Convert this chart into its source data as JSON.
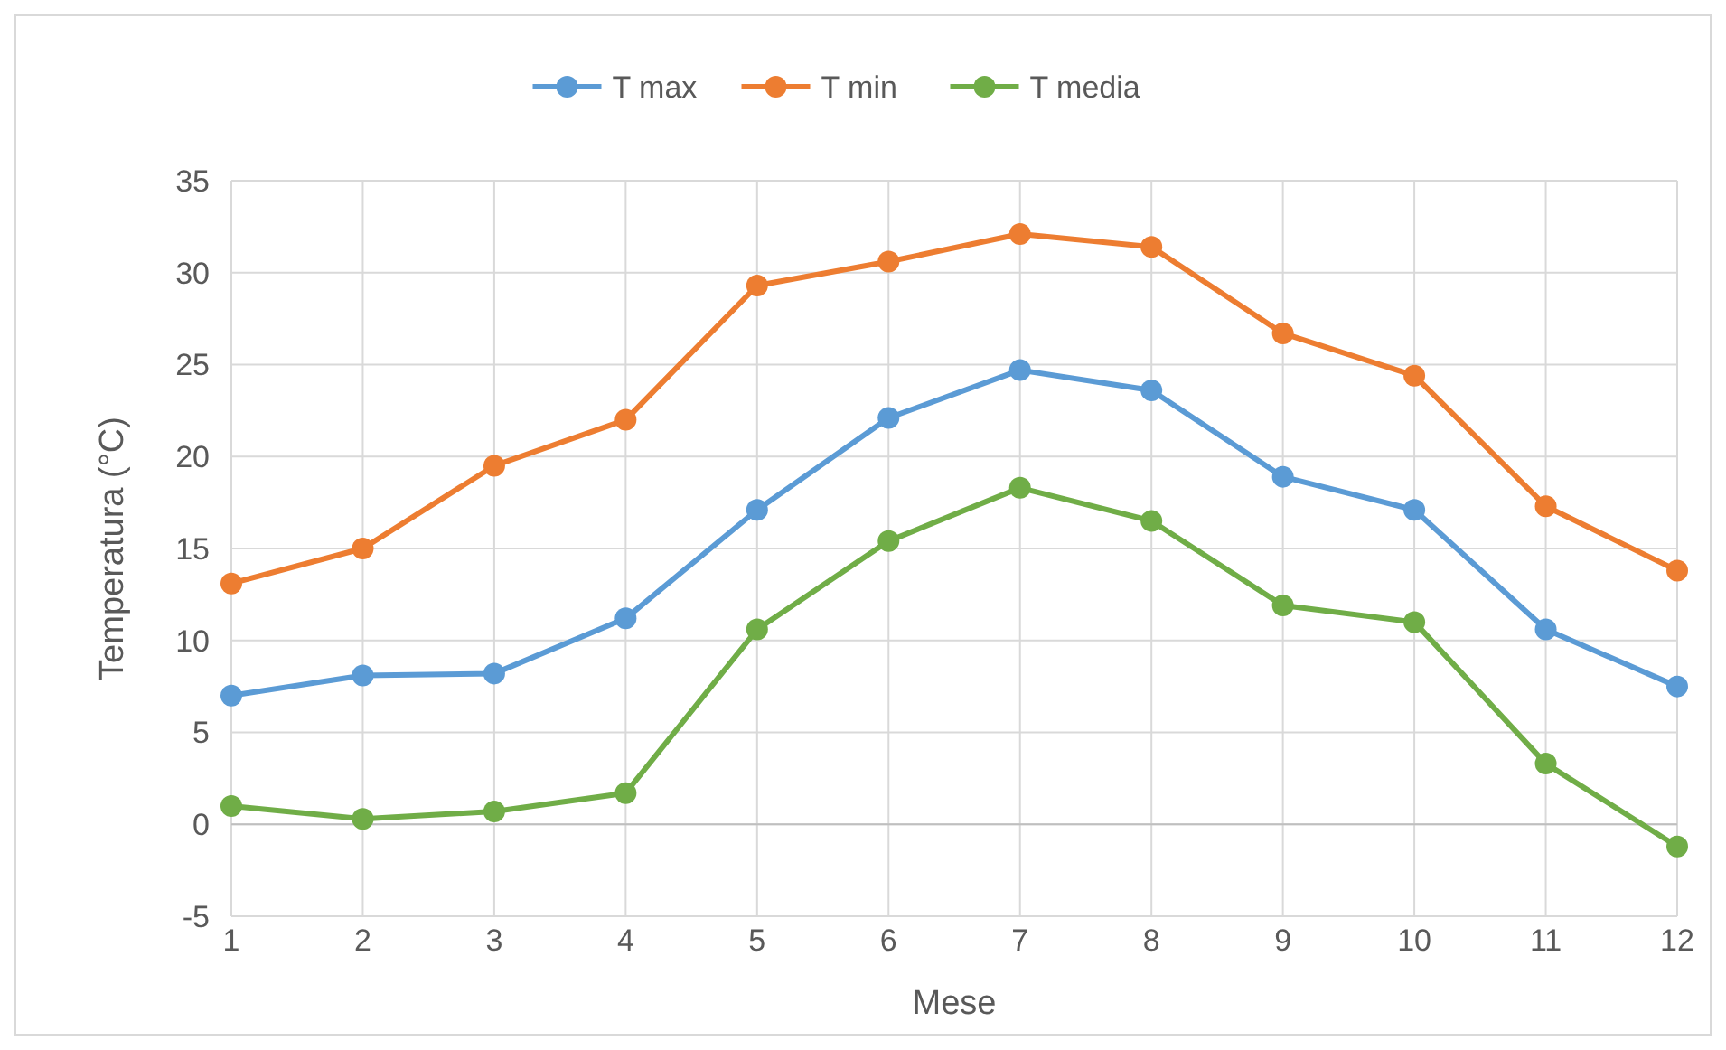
{
  "chart_data": {
    "type": "line",
    "xlabel": "Mese",
    "ylabel": "Temperatura (°C)",
    "x": [
      1,
      2,
      3,
      4,
      5,
      6,
      7,
      8,
      9,
      10,
      11,
      12
    ],
    "xlim": [
      1,
      12
    ],
    "xticks": [
      1,
      2,
      3,
      4,
      5,
      6,
      7,
      8,
      9,
      10,
      11,
      12
    ],
    "series": [
      {
        "name": "T max",
        "color": "#5b9bd5",
        "values": [
          7.0,
          8.1,
          8.2,
          11.2,
          17.1,
          22.1,
          24.7,
          23.6,
          18.9,
          17.1,
          10.6,
          7.5
        ]
      },
      {
        "name": "T min",
        "color": "#ed7d31",
        "values": [
          13.1,
          15.0,
          19.5,
          22.0,
          29.3,
          30.6,
          32.1,
          31.4,
          26.7,
          24.4,
          17.3,
          13.8
        ]
      },
      {
        "name": "T media",
        "color": "#70ad47",
        "values": [
          1.0,
          0.3,
          0.7,
          1.7,
          10.6,
          15.4,
          18.3,
          16.5,
          11.9,
          11.0,
          3.3,
          -1.2
        ]
      }
    ],
    "ylim": [
      -5,
      35
    ],
    "yticks": [
      -5,
      0,
      5,
      10,
      15,
      20,
      25,
      30,
      35
    ],
    "grid": true,
    "legend": "top",
    "marker": "circle",
    "line_style": "solid"
  }
}
